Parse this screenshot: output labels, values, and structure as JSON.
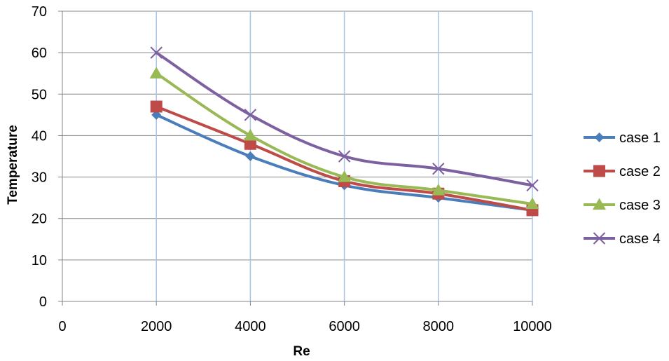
{
  "chart_data": {
    "type": "line",
    "title": "",
    "xlabel": "Re",
    "ylabel": "Temperature",
    "x": [
      2000,
      4000,
      6000,
      8000,
      10000
    ],
    "xlim": [
      0,
      10000
    ],
    "ylim": [
      0,
      70
    ],
    "x_ticks": [
      0,
      2000,
      4000,
      6000,
      8000,
      10000
    ],
    "y_ticks": [
      0,
      10,
      20,
      30,
      40,
      50,
      60,
      70
    ],
    "x_tick_labels": [
      "0",
      "2000",
      "4000",
      "6000",
      "8000",
      "10000"
    ],
    "y_tick_labels": [
      "0",
      "10",
      "20",
      "30",
      "40",
      "50",
      "60",
      "70"
    ],
    "grid": {
      "horizontal": true,
      "vertical": true
    },
    "legend_position": "right",
    "series": [
      {
        "name": "case 1",
        "values": [
          45,
          35,
          28,
          25,
          22
        ],
        "color": "#4a7ebb",
        "marker": "diamond"
      },
      {
        "name": "case 2",
        "values": [
          47,
          38,
          29,
          26,
          22
        ],
        "color": "#be4b48",
        "marker": "square"
      },
      {
        "name": "case 3",
        "values": [
          55,
          40,
          30,
          26.8,
          23.5
        ],
        "color": "#98b954",
        "marker": "triangle"
      },
      {
        "name": "case 4",
        "values": [
          60,
          45,
          35,
          32,
          28
        ],
        "color": "#7d60a0",
        "marker": "x"
      }
    ]
  }
}
